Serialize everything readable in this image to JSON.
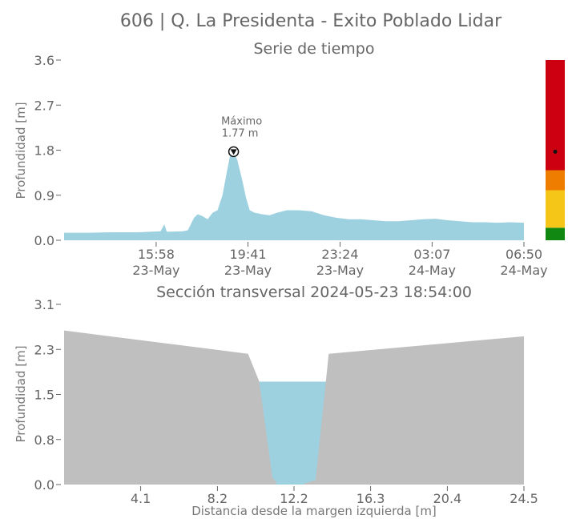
{
  "figure": {
    "title": "606 | Q. La Presidenta - Exito Poblado Lidar",
    "colors": {
      "water": "#9ed1e0",
      "terrain": "#bfbfbf",
      "axis": "#666666",
      "alert_red": "#cc0011",
      "alert_orange": "#ee7d00",
      "alert_yellow": "#f5c518",
      "alert_green": "#118811"
    }
  },
  "chart_data": [
    {
      "type": "area",
      "title": "Serie de tiempo",
      "xlabel": "",
      "ylabel": "Profundidad [m]",
      "x_unit": "hours since 2024-05-23 12:15",
      "xlim": [
        0,
        18.58
      ],
      "ylim": [
        0,
        3.6
      ],
      "yticks": [
        "0.0",
        "0.9",
        "1.8",
        "2.7",
        "3.6"
      ],
      "ytick_values": [
        0,
        0.9,
        1.8,
        2.7,
        3.6
      ],
      "xticks": [
        {
          "line1": "15:58",
          "line2": "23-May"
        },
        {
          "line1": "19:41",
          "line2": "23-May"
        },
        {
          "line1": "23:24",
          "line2": "23-May"
        },
        {
          "line1": "03:07",
          "line2": "24-May"
        },
        {
          "line1": "06:50",
          "line2": "24-May"
        }
      ],
      "xtick_values": [
        3.72,
        7.43,
        11.15,
        14.87,
        18.58
      ],
      "series": [
        {
          "x": [
            0,
            1.0,
            2.0,
            3.0,
            3.9,
            4.05,
            4.15,
            4.8,
            5.0,
            5.25,
            5.4,
            5.6,
            5.8,
            6.0,
            6.2,
            6.4,
            6.55,
            6.7,
            6.85,
            7.0,
            7.2,
            7.35,
            7.5,
            7.7,
            8.0,
            8.3,
            8.6,
            9.0,
            9.5,
            10.0,
            10.5,
            11.0,
            11.5,
            12.0,
            12.5,
            13.0,
            13.5,
            14.0,
            14.5,
            15.0,
            15.5,
            16.0,
            16.5,
            17.0,
            17.5,
            18.0,
            18.58
          ],
          "values": [
            0.15,
            0.15,
            0.16,
            0.16,
            0.18,
            0.32,
            0.17,
            0.18,
            0.2,
            0.45,
            0.52,
            0.48,
            0.42,
            0.55,
            0.6,
            0.9,
            1.3,
            1.68,
            1.77,
            1.6,
            1.2,
            0.85,
            0.6,
            0.55,
            0.52,
            0.5,
            0.55,
            0.6,
            0.6,
            0.58,
            0.5,
            0.45,
            0.42,
            0.42,
            0.4,
            0.38,
            0.38,
            0.4,
            0.42,
            0.43,
            0.4,
            0.38,
            0.36,
            0.36,
            0.35,
            0.36,
            0.35
          ]
        }
      ],
      "peak_annotation": {
        "label": "Máximo",
        "value_label": "1.77 m",
        "x": 6.85,
        "y": 1.77
      },
      "alert_bar": {
        "levels": [
          {
            "color": "#118811",
            "from": 0.0,
            "to": 0.25
          },
          {
            "color": "#f5c518",
            "from": 0.25,
            "to": 1.0
          },
          {
            "color": "#ee7d00",
            "from": 1.0,
            "to": 1.4
          },
          {
            "color": "#cc0011",
            "from": 1.4,
            "to": 3.6
          }
        ],
        "marker_value": 1.77
      }
    },
    {
      "type": "area",
      "title": "Sección transversal 2024-05-23 18:54:00",
      "xlabel": "Distancia desde la margen izquierda [m]",
      "ylabel": "Profundidad [m]",
      "xlim": [
        0,
        24.5
      ],
      "ylim": [
        0,
        3.1
      ],
      "yticks": [
        "0.0",
        "0.8",
        "1.5",
        "2.3",
        "3.1"
      ],
      "ytick_values": [
        0,
        0.775,
        1.55,
        2.325,
        3.1
      ],
      "xticks": [
        "4.1",
        "8.2",
        "12.2",
        "16.3",
        "20.4",
        "24.5"
      ],
      "xtick_values": [
        4.08,
        8.17,
        12.25,
        16.33,
        20.42,
        24.5
      ],
      "terrain": {
        "x": [
          0,
          9.8,
          10.4,
          11.1,
          11.3,
          12.0,
          12.8,
          13.4,
          14.1,
          24.5,
          24.5
        ],
        "y": [
          2.65,
          2.25,
          1.77,
          0.12,
          0.05,
          0.0,
          0.02,
          0.08,
          2.25,
          2.55,
          2.65
        ]
      },
      "water": {
        "level": 1.77,
        "x_left": 10.4,
        "x_right": 14.1
      }
    }
  ]
}
